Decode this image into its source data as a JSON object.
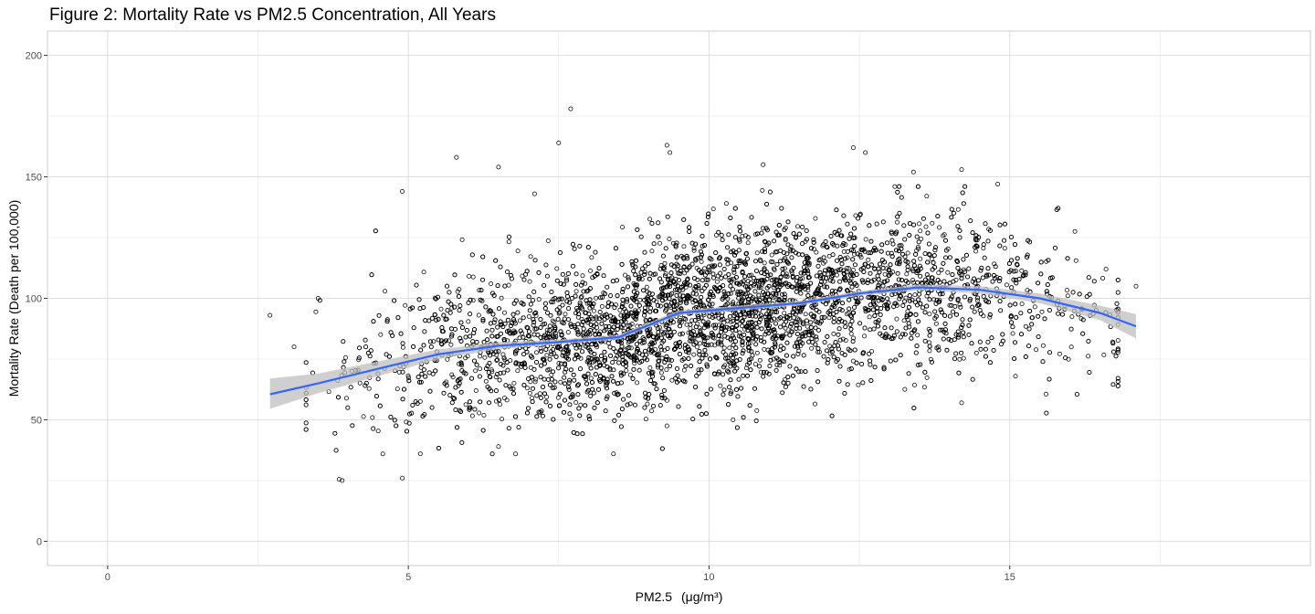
{
  "chart_data": {
    "type": "scatter",
    "title": "Figure 2: Mortality Rate vs PM2.5 Concentration, All Years",
    "xlabel": "PM2.5",
    "xlabel_unit": "(μg/m³)",
    "ylabel": "Mortality Rate (Death per 100,000)",
    "xlim": [
      -1,
      20
    ],
    "ylim": [
      -10,
      210
    ],
    "x_ticks": [
      0,
      5,
      10,
      15
    ],
    "x_minor": [
      2.5,
      7.5,
      12.5,
      17.5
    ],
    "y_ticks": [
      0,
      50,
      100,
      150,
      200
    ],
    "y_minor": [
      25,
      75,
      125,
      175
    ],
    "grid": true,
    "legend": "none",
    "point_style": {
      "fill": "none",
      "stroke": "#000000"
    },
    "smooth": {
      "method": "loess",
      "color": "#3366FF",
      "band_color": "#bfbfbf",
      "x": [
        2.7,
        3.5,
        4.5,
        5.5,
        6.5,
        7.5,
        8.5,
        9.5,
        10.5,
        11.5,
        12.5,
        13.5,
        14.5,
        15.5,
        16.5,
        17.1
      ],
      "y": [
        60.5,
        65,
        71,
        77,
        80.5,
        82,
        84,
        94,
        96,
        98,
        102,
        104.5,
        103.5,
        100,
        94,
        88.5
      ],
      "lower": [
        54.5,
        61,
        68,
        75,
        79,
        81,
        83,
        93,
        95,
        97,
        101,
        103.3,
        102,
        98,
        91,
        83.5
      ],
      "upper": [
        67,
        69,
        74,
        79,
        82,
        83,
        85,
        95,
        97,
        99,
        103,
        105.7,
        105,
        102,
        97,
        93.5
      ]
    },
    "highlighted_points": [
      {
        "x": 2.7,
        "y": 93
      },
      {
        "x": 3.1,
        "y": 80
      },
      {
        "x": 3.5,
        "y": 100
      },
      {
        "x": 3.9,
        "y": 25
      },
      {
        "x": 3.85,
        "y": 25.5
      },
      {
        "x": 4.9,
        "y": 144
      },
      {
        "x": 4.9,
        "y": 26
      },
      {
        "x": 5.8,
        "y": 158
      },
      {
        "x": 6.5,
        "y": 154
      },
      {
        "x": 7.1,
        "y": 143
      },
      {
        "x": 7.5,
        "y": 164
      },
      {
        "x": 7.7,
        "y": 178
      },
      {
        "x": 9.3,
        "y": 163
      },
      {
        "x": 9.35,
        "y": 160
      },
      {
        "x": 10.9,
        "y": 155
      },
      {
        "x": 12.4,
        "y": 162
      },
      {
        "x": 12.6,
        "y": 160
      },
      {
        "x": 13.4,
        "y": 152
      },
      {
        "x": 14.2,
        "y": 153
      },
      {
        "x": 14.8,
        "y": 147
      },
      {
        "x": 14.2,
        "y": 57
      },
      {
        "x": 16.6,
        "y": 112
      },
      {
        "x": 17.1,
        "y": 105
      },
      {
        "x": 10.4,
        "y": 50
      },
      {
        "x": 9.3,
        "y": 47.5
      },
      {
        "x": 6.5,
        "y": 39
      },
      {
        "x": 5.2,
        "y": 36
      }
    ],
    "scatter_summary": {
      "n_points_approx": 7000,
      "x_range": [
        2.7,
        17.2
      ],
      "y_range": [
        25,
        178
      ],
      "trend": "y rises roughly with x, mean near smooth curve, spread sd about 16"
    }
  }
}
